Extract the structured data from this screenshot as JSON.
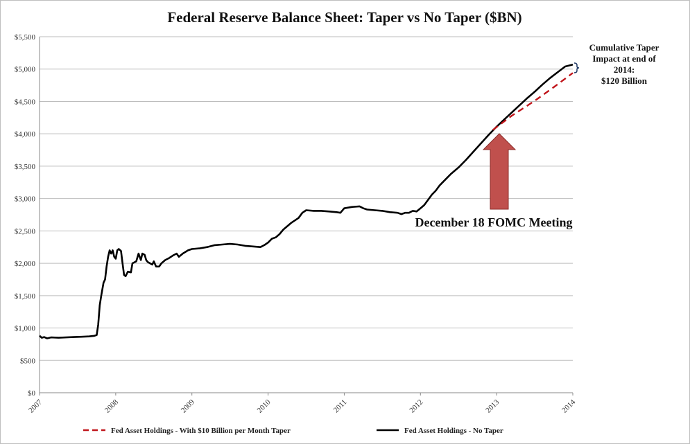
{
  "chart_data": {
    "type": "line",
    "title": "Federal Reserve Balance Sheet: Taper vs No Taper ($BN)",
    "xlabel": "",
    "ylabel": "",
    "x_range": [
      "2007",
      "2014"
    ],
    "x_ticks": [
      "2007",
      "2008",
      "2009",
      "2010",
      "2011",
      "2012",
      "2013",
      "2014"
    ],
    "ylim": [
      0,
      5500
    ],
    "y_ticks": [
      "$0",
      "$500",
      "$1,000",
      "$1,500",
      "$2,000",
      "$2,500",
      "$3,000",
      "$3,500",
      "$4,000",
      "$4,500",
      "$5,000",
      "$5,500"
    ],
    "grid": "horizontal",
    "legend_position": "bottom",
    "series": [
      {
        "name": "Fed Asset Holdings - With $10 Billion per Month Taper",
        "color": "#c0151b",
        "style": "dashed",
        "points": [
          [
            2012.95,
            4060
          ],
          [
            2013.2,
            4280
          ],
          [
            2013.5,
            4510
          ],
          [
            2013.75,
            4720
          ],
          [
            2014.0,
            4940
          ]
        ]
      },
      {
        "name": "Fed Asset Holdings - No Taper",
        "color": "#000000",
        "style": "solid",
        "points": [
          [
            2007.0,
            880
          ],
          [
            2007.03,
            850
          ],
          [
            2007.06,
            860
          ],
          [
            2007.1,
            840
          ],
          [
            2007.15,
            855
          ],
          [
            2007.25,
            850
          ],
          [
            2007.35,
            855
          ],
          [
            2007.45,
            860
          ],
          [
            2007.55,
            865
          ],
          [
            2007.65,
            870
          ],
          [
            2007.72,
            880
          ],
          [
            2007.75,
            890
          ],
          [
            2007.77,
            1050
          ],
          [
            2007.79,
            1350
          ],
          [
            2007.81,
            1500
          ],
          [
            2007.84,
            1700
          ],
          [
            2007.86,
            1750
          ],
          [
            2007.88,
            1950
          ],
          [
            2007.9,
            2100
          ],
          [
            2007.92,
            2200
          ],
          [
            2007.94,
            2150
          ],
          [
            2007.96,
            2200
          ],
          [
            2007.98,
            2100
          ],
          [
            2008.0,
            2070
          ],
          [
            2008.02,
            2200
          ],
          [
            2008.04,
            2220
          ],
          [
            2008.07,
            2190
          ],
          [
            2008.09,
            2000
          ],
          [
            2008.11,
            1820
          ],
          [
            2008.13,
            1800
          ],
          [
            2008.16,
            1870
          ],
          [
            2008.2,
            1860
          ],
          [
            2008.22,
            2000
          ],
          [
            2008.27,
            2030
          ],
          [
            2008.3,
            2150
          ],
          [
            2008.33,
            2050
          ],
          [
            2008.35,
            2150
          ],
          [
            2008.38,
            2130
          ],
          [
            2008.4,
            2050
          ],
          [
            2008.42,
            2020
          ],
          [
            2008.45,
            2000
          ],
          [
            2008.48,
            1980
          ],
          [
            2008.5,
            2030
          ],
          [
            2008.53,
            1950
          ],
          [
            2008.57,
            1950
          ],
          [
            2008.6,
            2000
          ],
          [
            2008.65,
            2050
          ],
          [
            2008.7,
            2080
          ],
          [
            2008.75,
            2120
          ],
          [
            2008.8,
            2150
          ],
          [
            2008.83,
            2100
          ],
          [
            2008.88,
            2150
          ],
          [
            2008.95,
            2200
          ],
          [
            2009.0,
            2220
          ],
          [
            2009.1,
            2230
          ],
          [
            2009.2,
            2250
          ],
          [
            2009.3,
            2280
          ],
          [
            2009.4,
            2290
          ],
          [
            2009.5,
            2300
          ],
          [
            2009.6,
            2290
          ],
          [
            2009.7,
            2270
          ],
          [
            2009.8,
            2260
          ],
          [
            2009.9,
            2250
          ],
          [
            2009.95,
            2280
          ],
          [
            2010.0,
            2320
          ],
          [
            2010.05,
            2380
          ],
          [
            2010.1,
            2400
          ],
          [
            2010.15,
            2450
          ],
          [
            2010.2,
            2520
          ],
          [
            2010.3,
            2620
          ],
          [
            2010.4,
            2700
          ],
          [
            2010.45,
            2780
          ],
          [
            2010.5,
            2820
          ],
          [
            2010.6,
            2810
          ],
          [
            2010.7,
            2810
          ],
          [
            2010.8,
            2800
          ],
          [
            2010.9,
            2790
          ],
          [
            2010.95,
            2780
          ],
          [
            2011.0,
            2850
          ],
          [
            2011.1,
            2870
          ],
          [
            2011.2,
            2880
          ],
          [
            2011.25,
            2850
          ],
          [
            2011.3,
            2830
          ],
          [
            2011.4,
            2820
          ],
          [
            2011.5,
            2810
          ],
          [
            2011.6,
            2790
          ],
          [
            2011.7,
            2780
          ],
          [
            2011.75,
            2760
          ],
          [
            2011.8,
            2780
          ],
          [
            2011.85,
            2780
          ],
          [
            2011.9,
            2810
          ],
          [
            2011.95,
            2800
          ],
          [
            2012.0,
            2850
          ],
          [
            2012.05,
            2900
          ],
          [
            2012.1,
            2980
          ],
          [
            2012.15,
            3060
          ],
          [
            2012.2,
            3120
          ],
          [
            2012.25,
            3200
          ],
          [
            2012.3,
            3260
          ],
          [
            2012.4,
            3380
          ],
          [
            2012.5,
            3480
          ],
          [
            2012.6,
            3600
          ],
          [
            2012.7,
            3730
          ],
          [
            2012.8,
            3860
          ],
          [
            2012.9,
            3990
          ],
          [
            2013.0,
            4110
          ],
          [
            2013.1,
            4220
          ],
          [
            2013.2,
            4330
          ],
          [
            2013.3,
            4440
          ],
          [
            2013.4,
            4550
          ],
          [
            2013.5,
            4650
          ],
          [
            2013.6,
            4760
          ],
          [
            2013.7,
            4860
          ],
          [
            2013.8,
            4950
          ],
          [
            2013.9,
            5040
          ],
          [
            2014.0,
            5070
          ]
        ]
      }
    ],
    "annotations": {
      "taper_impact_lines": [
        "Cumulative Taper",
        "Impact at end of",
        "2014:",
        "$120 Billion"
      ],
      "meeting_label": "December 18 FOMC Meeting",
      "arrow_color": "#c0504d",
      "brace_color": "#1f3864"
    }
  }
}
